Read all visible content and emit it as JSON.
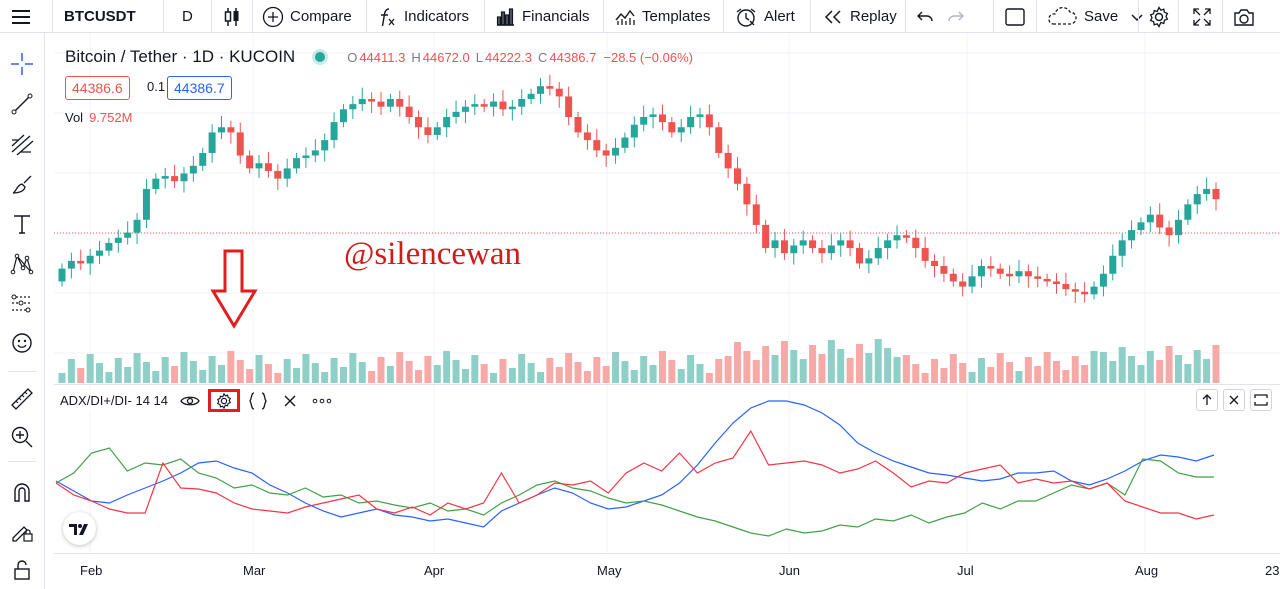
{
  "toolbar": {
    "symbol": "BTCUSDT",
    "interval": "D",
    "compare": "Compare",
    "indicators": "Indicators",
    "financials": "Financials",
    "templates": "Templates",
    "alert": "Alert",
    "replay": "Replay",
    "save": "Save"
  },
  "legend": {
    "title": "Bitcoin / Tether · 1D · KUCOIN",
    "open": "44411.3",
    "high": "44672.0",
    "low": "44222.3",
    "close": "44386.7",
    "change": "−28.5 (−0.06%)",
    "bid": "44386.6",
    "spread": "0.1",
    "ask": "44386.7",
    "vol_label": "Vol",
    "vol_value": "9.752M"
  },
  "watermark": "@silencewan",
  "indicator": {
    "label": "ADX/DI+/DI- 14 14"
  },
  "time_axis": [
    "Feb",
    "Mar",
    "Apr",
    "May",
    "Jun",
    "Jul",
    "Aug",
    "23"
  ],
  "colors": {
    "up": "#26a69a",
    "down": "#ef5350",
    "vol_up": "#8ecfc7",
    "vol_down": "#f7a9a7",
    "adx": "#2962ff",
    "di_plus": "#43a047",
    "di_minus": "#f23645",
    "annotation": "#e11d1d"
  },
  "icons": {
    "left_toolbar": [
      "crosshair-icon",
      "trend-line-icon",
      "fib-retracement-icon",
      "brush-icon",
      "text-icon",
      "pattern-icon",
      "long-position-icon",
      "emoji-icon",
      "ruler-icon",
      "zoom-in-icon",
      "magnet-icon",
      "lock-drawing-icon",
      "lock-icon"
    ]
  },
  "chart_data": {
    "type": "candlestick",
    "symbol": "Bitcoin / Tether",
    "interval": "1D",
    "exchange": "KUCOIN",
    "x_range": [
      "Jan 22",
      "Aug 14"
    ],
    "ohlc_close_approx": [
      [
        0.22,
        0.27
      ],
      [
        0.27,
        0.3
      ],
      [
        0.3,
        0.29
      ],
      [
        0.29,
        0.32
      ],
      [
        0.32,
        0.34
      ],
      [
        0.34,
        0.37
      ],
      [
        0.37,
        0.39
      ],
      [
        0.39,
        0.41
      ],
      [
        0.41,
        0.46
      ],
      [
        0.46,
        0.58
      ],
      [
        0.58,
        0.62
      ],
      [
        0.62,
        0.63
      ],
      [
        0.63,
        0.61
      ],
      [
        0.61,
        0.64
      ],
      [
        0.64,
        0.67
      ],
      [
        0.67,
        0.72
      ],
      [
        0.72,
        0.8
      ],
      [
        0.8,
        0.82
      ],
      [
        0.82,
        0.8
      ],
      [
        0.8,
        0.71
      ],
      [
        0.71,
        0.66
      ],
      [
        0.66,
        0.68
      ],
      [
        0.68,
        0.65
      ],
      [
        0.65,
        0.62
      ],
      [
        0.62,
        0.66
      ],
      [
        0.66,
        0.7
      ],
      [
        0.7,
        0.71
      ],
      [
        0.71,
        0.73
      ],
      [
        0.73,
        0.77
      ],
      [
        0.77,
        0.84
      ],
      [
        0.84,
        0.89
      ],
      [
        0.89,
        0.91
      ],
      [
        0.91,
        0.93
      ],
      [
        0.93,
        0.92
      ],
      [
        0.92,
        0.9
      ],
      [
        0.9,
        0.93
      ],
      [
        0.93,
        0.9
      ],
      [
        0.9,
        0.86
      ],
      [
        0.86,
        0.82
      ],
      [
        0.82,
        0.79
      ],
      [
        0.79,
        0.82
      ],
      [
        0.82,
        0.86
      ],
      [
        0.86,
        0.88
      ],
      [
        0.88,
        0.9
      ],
      [
        0.9,
        0.91
      ],
      [
        0.91,
        0.9
      ],
      [
        0.9,
        0.92
      ],
      [
        0.92,
        0.89
      ],
      [
        0.89,
        0.9
      ],
      [
        0.9,
        0.93
      ],
      [
        0.93,
        0.95
      ],
      [
        0.95,
        0.98
      ],
      [
        0.98,
        0.97
      ],
      [
        0.97,
        0.94
      ],
      [
        0.94,
        0.86
      ],
      [
        0.86,
        0.8
      ],
      [
        0.8,
        0.77
      ],
      [
        0.77,
        0.73
      ],
      [
        0.73,
        0.71
      ],
      [
        0.71,
        0.74
      ],
      [
        0.74,
        0.78
      ],
      [
        0.78,
        0.83
      ],
      [
        0.83,
        0.86
      ],
      [
        0.86,
        0.87
      ],
      [
        0.87,
        0.84
      ],
      [
        0.84,
        0.8
      ],
      [
        0.8,
        0.82
      ],
      [
        0.82,
        0.86
      ],
      [
        0.86,
        0.87
      ],
      [
        0.87,
        0.82
      ],
      [
        0.82,
        0.72
      ],
      [
        0.72,
        0.66
      ],
      [
        0.66,
        0.6
      ],
      [
        0.6,
        0.52
      ],
      [
        0.52,
        0.44
      ],
      [
        0.44,
        0.35
      ],
      [
        0.35,
        0.38
      ],
      [
        0.38,
        0.33
      ],
      [
        0.33,
        0.36
      ],
      [
        0.36,
        0.38
      ],
      [
        0.38,
        0.35
      ],
      [
        0.35,
        0.33
      ],
      [
        0.33,
        0.36
      ],
      [
        0.36,
        0.38
      ],
      [
        0.38,
        0.35
      ],
      [
        0.35,
        0.29
      ],
      [
        0.29,
        0.31
      ],
      [
        0.31,
        0.35
      ],
      [
        0.35,
        0.38
      ],
      [
        0.38,
        0.4
      ],
      [
        0.4,
        0.39
      ],
      [
        0.39,
        0.35
      ],
      [
        0.35,
        0.3
      ],
      [
        0.3,
        0.28
      ],
      [
        0.28,
        0.25
      ],
      [
        0.25,
        0.22
      ],
      [
        0.22,
        0.2
      ],
      [
        0.2,
        0.24
      ],
      [
        0.24,
        0.28
      ],
      [
        0.28,
        0.27
      ],
      [
        0.27,
        0.25
      ],
      [
        0.25,
        0.24
      ],
      [
        0.24,
        0.26
      ],
      [
        0.26,
        0.24
      ],
      [
        0.24,
        0.23
      ],
      [
        0.23,
        0.22
      ],
      [
        0.22,
        0.21
      ],
      [
        0.21,
        0.19
      ],
      [
        0.19,
        0.18
      ],
      [
        0.18,
        0.17
      ],
      [
        0.17,
        0.2
      ],
      [
        0.2,
        0.25
      ],
      [
        0.25,
        0.32
      ],
      [
        0.32,
        0.38
      ],
      [
        0.38,
        0.42
      ],
      [
        0.42,
        0.45
      ],
      [
        0.45,
        0.48
      ],
      [
        0.48,
        0.43
      ],
      [
        0.43,
        0.4
      ],
      [
        0.4,
        0.46
      ],
      [
        0.46,
        0.52
      ],
      [
        0.52,
        0.56
      ],
      [
        0.56,
        0.58
      ],
      [
        0.58,
        0.54
      ]
    ],
    "indicator_series": [
      "ADX",
      "DI+",
      "DI-"
    ]
  }
}
